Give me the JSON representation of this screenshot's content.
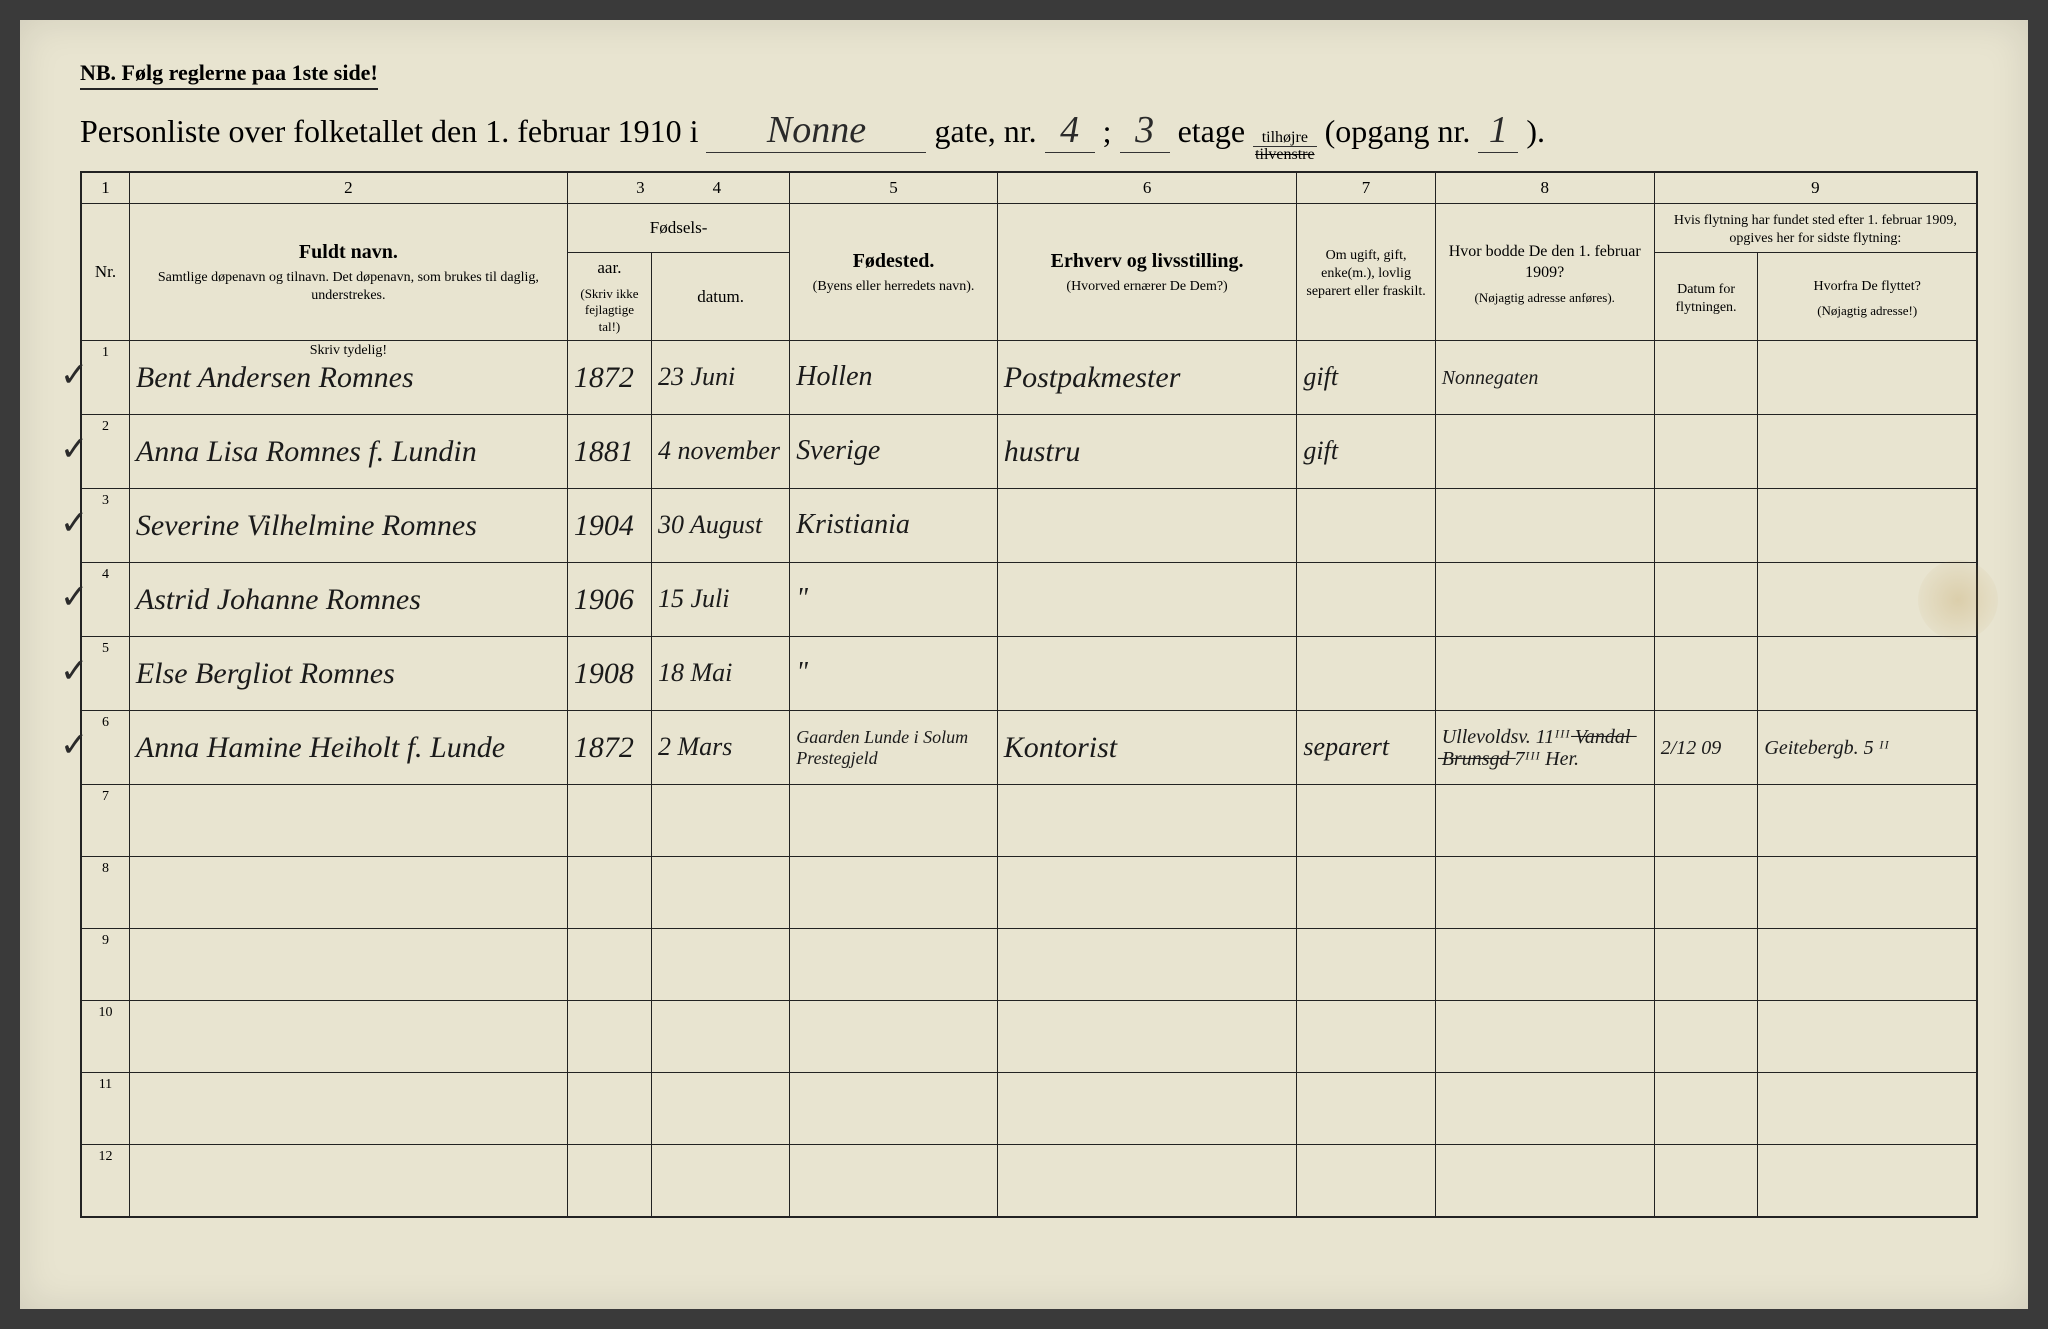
{
  "header": {
    "nb": "NB.  Følg reglerne paa 1ste side!",
    "title_prefix": "Personliste over folketallet den 1. februar 1910 i",
    "street_name": "Nonne",
    "gate_label": "gate, nr.",
    "gate_nr": "4",
    "semicolon": ";",
    "etage_nr": "3",
    "etage_label": "etage",
    "tilhojre": "tilhøjre",
    "tilvenstre": "tilvenstre",
    "opgang_label": "(opgang nr.",
    "opgang_nr": "1",
    "close_paren": ")."
  },
  "columns": {
    "c1": "1",
    "c2": "2",
    "c3": "3",
    "c4": "4",
    "c5": "5",
    "c6": "6",
    "c7": "7",
    "c8": "8",
    "c9": "9",
    "nr": "Nr.",
    "fuldt_navn": "Fuldt navn.",
    "fuldt_navn_sub": "Samtlige døpenavn og tilnavn. Det døpenavn, som brukes til daglig, understrekes.",
    "fodsels": "Fødsels-",
    "aar": "aar.",
    "datum": "datum.",
    "aar_note": "(Skriv ikke fejlagtige tal!)",
    "fodested": "Fødested.",
    "fodested_sub": "(Byens eller herredets navn).",
    "erhverv": "Erhverv og livsstilling.",
    "erhverv_sub": "(Hvorved ernærer De Dem?)",
    "ugift": "Om ugift, gift, enke(m.), lovlig separert eller fraskilt.",
    "hvor_bodde": "Hvor bodde De den 1. februar 1909?",
    "hvor_bodde_sub": "(Nøjagtig adresse anføres).",
    "flytning": "Hvis flytning har fundet sted efter 1. februar 1909, opgives her for sidste flytning:",
    "datum_flyt": "Datum for flytningen.",
    "hvorfra": "Hvorfra De flyttet?",
    "hvorfra_sub": "(Nøjagtig adresse!)",
    "skriv_tydelig": "Skriv tydelig!"
  },
  "rows": [
    {
      "nr": "1",
      "check": "✓",
      "name": "Bent Andersen Romnes",
      "aar": "1872",
      "datum": "23 Juni",
      "fodested": "Hollen",
      "erhverv": "Postpakmester",
      "status": "gift",
      "bodde_1909": "Nonnegaten",
      "flyt_dato": "",
      "hvorfra": ""
    },
    {
      "nr": "2",
      "check": "✓",
      "name": "Anna Lisa Romnes f. Lundin",
      "aar": "1881",
      "datum": "4 november",
      "fodested": "Sverige",
      "erhverv": "hustru",
      "status": "gift",
      "bodde_1909": "",
      "flyt_dato": "",
      "hvorfra": ""
    },
    {
      "nr": "3",
      "check": "✓",
      "name": "Severine Vilhelmine Romnes",
      "aar": "1904",
      "datum": "30 August",
      "fodested": "Kristiania",
      "erhverv": "",
      "status": "",
      "bodde_1909": "",
      "flyt_dato": "",
      "hvorfra": ""
    },
    {
      "nr": "4",
      "check": "✓",
      "name": "Astrid Johanne Romnes",
      "aar": "1906",
      "datum": "15 Juli",
      "fodested": "\"",
      "erhverv": "",
      "status": "",
      "bodde_1909": "",
      "flyt_dato": "",
      "hvorfra": ""
    },
    {
      "nr": "5",
      "check": "✓",
      "name": "Else Bergliot Romnes",
      "aar": "1908",
      "datum": "18 Mai",
      "fodested": "\"",
      "erhverv": "",
      "status": "",
      "bodde_1909": "",
      "flyt_dato": "",
      "hvorfra": ""
    },
    {
      "nr": "6",
      "check": "✓",
      "name": "Anna Hamine Heiholt f. Lunde",
      "aar": "1872",
      "datum": "2 Mars",
      "fodested": "Gaarden Lunde i Solum Prestegjeld",
      "erhverv": "Kontorist",
      "status": "separert",
      "bodde_1909": "Ullevoldsv. 11ᴵᴵᴵ  ̶V̶a̶n̶d̶a̶l̶ ̶B̶r̶u̶n̶s̶g̶d̶  7ᴵᴵᴵ Her.",
      "flyt_dato": "2/12 09",
      "hvorfra": "Geitebergb. 5 ᴵᴵ"
    }
  ],
  "empty_rows": [
    "7",
    "8",
    "9",
    "10",
    "11",
    "12"
  ]
}
